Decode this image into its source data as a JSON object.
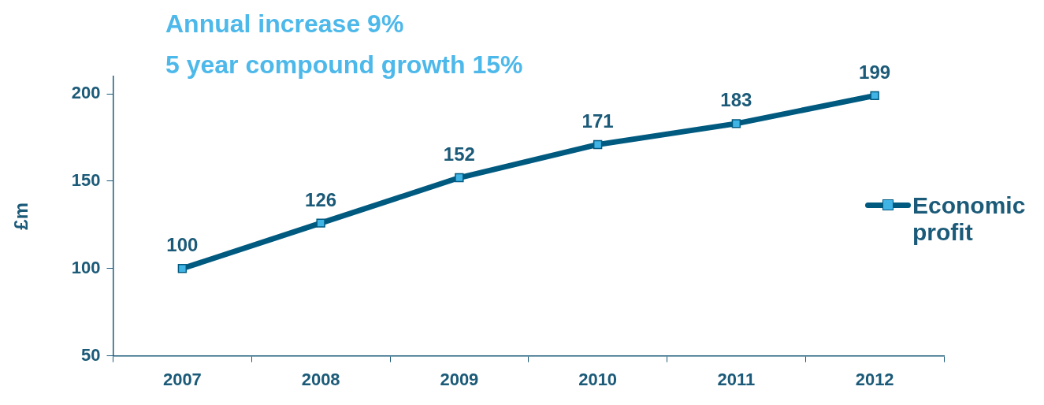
{
  "chart_data": {
    "type": "line",
    "title": "Annual increase 9%",
    "subtitle": "5 year compound growth 15%",
    "ylabel": "£m",
    "categories": [
      "2007",
      "2008",
      "2009",
      "2010",
      "2011",
      "2012"
    ],
    "series": [
      {
        "name": "Economic profit",
        "color": "#005a80",
        "values": [
          100,
          126,
          152,
          171,
          183,
          199
        ]
      }
    ],
    "ylim": [
      50,
      210
    ],
    "yticks": [
      50,
      100,
      150,
      200
    ],
    "grid": false,
    "legend": "right",
    "marker": "square",
    "line_style": "solid",
    "data_labels": true
  }
}
